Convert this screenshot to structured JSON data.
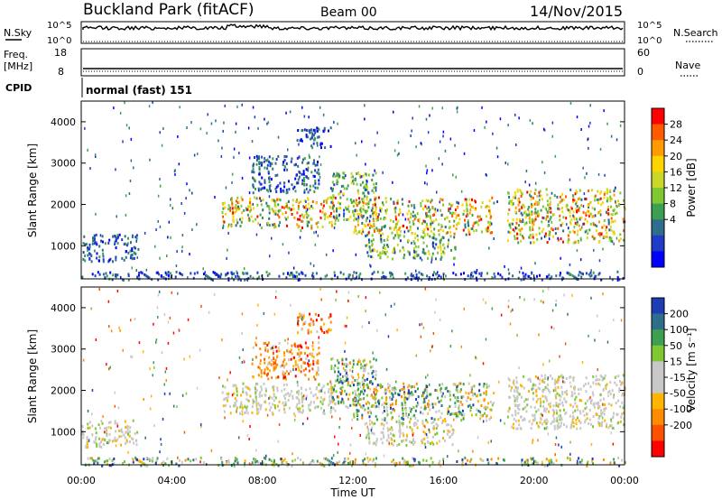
{
  "header": {
    "title": "Buckland Park (fitACF)",
    "beam": "Beam 00",
    "date": "14/Nov/2015"
  },
  "summary_panels": {
    "nsky_label": "N.Sky",
    "nsky_ticks": [
      "10^5",
      "10^0"
    ],
    "nsearch_label": "N.Search",
    "nsearch_ticks": [
      "10^5",
      "10^0"
    ],
    "freq_label": "Freq.",
    "freq_unit": "[MHz]",
    "freq_ticks": [
      "18",
      "8"
    ],
    "nave_label": "Nave",
    "nave_ticks": [
      "60",
      "0"
    ],
    "cpid_label": "CPID",
    "cpid_value": "normal (fast) 151"
  },
  "colorbars": {
    "power": {
      "label": "Power [dB]",
      "ticks": [
        "28",
        "24",
        "20",
        "16",
        "12",
        "8",
        "4"
      ],
      "colors": [
        "#ff0000",
        "#ff5a00",
        "#ff9b00",
        "#ffd400",
        "#c8d728",
        "#7fc832",
        "#3ca050",
        "#2e6e8c",
        "#1e3cc8",
        "#0000ff"
      ]
    },
    "velocity": {
      "label": "Velocity [m s⁻¹]",
      "ticks": [
        "200",
        "100",
        "50",
        "15",
        "-15",
        "-50",
        "-100",
        "-200"
      ],
      "colors": [
        "#1e3cb4",
        "#2e6e8c",
        "#3ca050",
        "#7fc832",
        "#c8c8c8",
        "#c8c8c8",
        "#ffb400",
        "#ff8c00",
        "#ff5000",
        "#ff0000"
      ]
    }
  },
  "chart_data": [
    {
      "type": "heatmap",
      "name": "power",
      "ylabel": "Slant Range [km]",
      "y_ticks": [
        "1000",
        "2000",
        "3000",
        "4000"
      ],
      "ylim": [
        200,
        4500
      ],
      "xlim": [
        0,
        24
      ],
      "x_ticks": [
        "00:00",
        "04:00",
        "08:00",
        "12:00",
        "16:00",
        "20:00",
        "00:00"
      ],
      "regions": [
        {
          "t0": 6.2,
          "t1": 11.2,
          "r0": 1450,
          "r1": 2200,
          "level": "high"
        },
        {
          "t0": 7.5,
          "t1": 10.5,
          "r0": 2300,
          "r1": 3200,
          "level": "low"
        },
        {
          "t0": 9.5,
          "t1": 11.0,
          "r0": 3400,
          "r1": 3900,
          "level": "low"
        },
        {
          "t0": 11.0,
          "t1": 13.0,
          "r0": 1600,
          "r1": 2800,
          "level": "mid"
        },
        {
          "t0": 12.0,
          "t1": 18.2,
          "r0": 1300,
          "r1": 2200,
          "level": "high"
        },
        {
          "t0": 12.5,
          "t1": 16.5,
          "r0": 700,
          "r1": 1300,
          "level": "mid"
        },
        {
          "t0": 18.8,
          "t1": 24.0,
          "r0": 1100,
          "r1": 2400,
          "level": "high"
        },
        {
          "t0": 0.0,
          "t1": 2.5,
          "r0": 650,
          "r1": 1300,
          "level": "low"
        },
        {
          "t0": 0.0,
          "t1": 24.0,
          "r0": 200,
          "r1": 400,
          "level": "low"
        }
      ]
    },
    {
      "type": "heatmap",
      "name": "velocity",
      "ylabel": "Slant Range [km]",
      "y_ticks": [
        "1000",
        "2000",
        "3000",
        "4000"
      ],
      "ylim": [
        200,
        4500
      ],
      "xlim": [
        0,
        24
      ],
      "xlabel": "Time UT",
      "x_ticks": [
        "00:00",
        "04:00",
        "08:00",
        "12:00",
        "16:00",
        "20:00",
        "00:00"
      ],
      "regions": [
        {
          "t0": 6.2,
          "t1": 11.2,
          "r0": 1450,
          "r1": 2200,
          "level": "ground"
        },
        {
          "t0": 7.5,
          "t1": 10.5,
          "r0": 2300,
          "r1": 3200,
          "level": "away"
        },
        {
          "t0": 9.5,
          "t1": 11.0,
          "r0": 3400,
          "r1": 3900,
          "level": "away"
        },
        {
          "t0": 11.0,
          "t1": 13.0,
          "r0": 1600,
          "r1": 2800,
          "level": "mixed"
        },
        {
          "t0": 12.0,
          "t1": 18.2,
          "r0": 1300,
          "r1": 2200,
          "level": "mixed"
        },
        {
          "t0": 12.5,
          "t1": 16.5,
          "r0": 700,
          "r1": 1300,
          "level": "ground"
        },
        {
          "t0": 18.8,
          "t1": 24.0,
          "r0": 1100,
          "r1": 2400,
          "level": "ground"
        },
        {
          "t0": 0.0,
          "t1": 2.5,
          "r0": 650,
          "r1": 1300,
          "level": "ground"
        },
        {
          "t0": 0.0,
          "t1": 24.0,
          "r0": 200,
          "r1": 400,
          "level": "mixed"
        }
      ]
    }
  ]
}
